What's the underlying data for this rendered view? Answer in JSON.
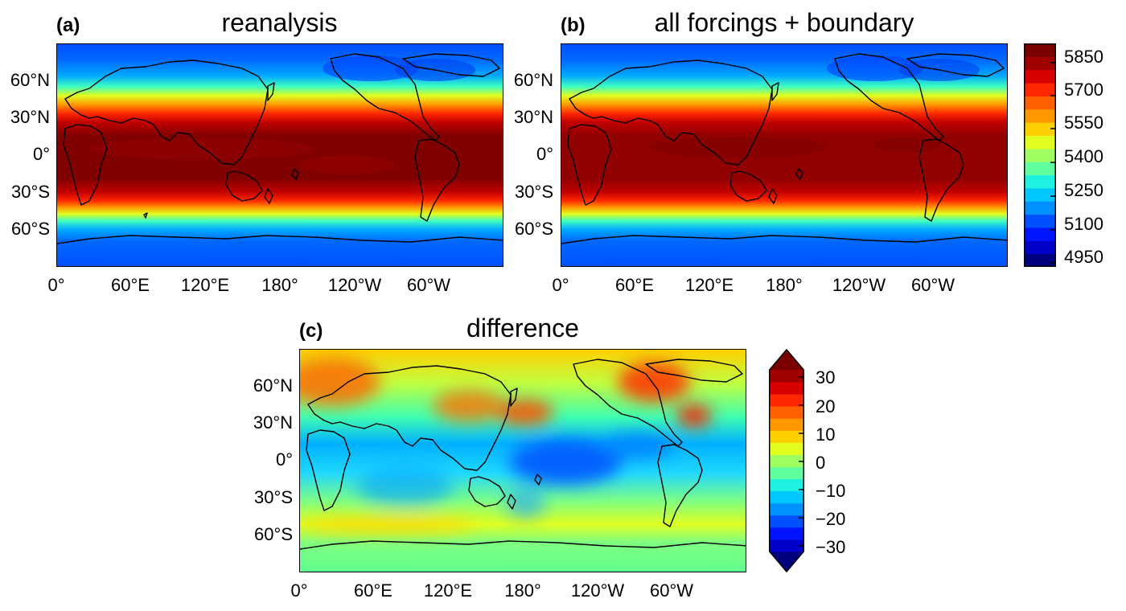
{
  "panels": [
    {
      "letter": "(a)",
      "title": "reanalysis"
    },
    {
      "letter": "(b)",
      "title": "all forcings + boundary"
    },
    {
      "letter": "(c)",
      "title": "difference"
    }
  ],
  "lat_labels": [
    "60°N",
    "30°N",
    "0°",
    "30°S",
    "60°S"
  ],
  "lon_labels": [
    "0°",
    "60°E",
    "120°E",
    "180°",
    "120°W",
    "60°W"
  ],
  "colorbar_top": {
    "labels": [
      "5850",
      "5700",
      "5550",
      "5400",
      "5250",
      "5100",
      "4950"
    ],
    "colors": [
      "#00007f",
      "#0000c8",
      "#0014ff",
      "#0050ff",
      "#0090ff",
      "#00c8ff",
      "#20f0e0",
      "#60ffa0",
      "#a0ff60",
      "#e0ff20",
      "#ffd000",
      "#ff9800",
      "#ff6000",
      "#ff2800",
      "#d80000",
      "#a00000",
      "#7a0000"
    ]
  },
  "colorbar_bottom": {
    "labels": [
      "30",
      "20",
      "10",
      "0",
      "−10",
      "−20",
      "−30"
    ],
    "colors": [
      "#00007f",
      "#0000c8",
      "#0014ff",
      "#0050ff",
      "#0090ff",
      "#00c8ff",
      "#20f0e0",
      "#60ffa0",
      "#a0ff60",
      "#e0ff20",
      "#ffd000",
      "#ff9800",
      "#ff6000",
      "#ff2800",
      "#d80000",
      "#a00000",
      "#7a0000"
    ]
  }
}
